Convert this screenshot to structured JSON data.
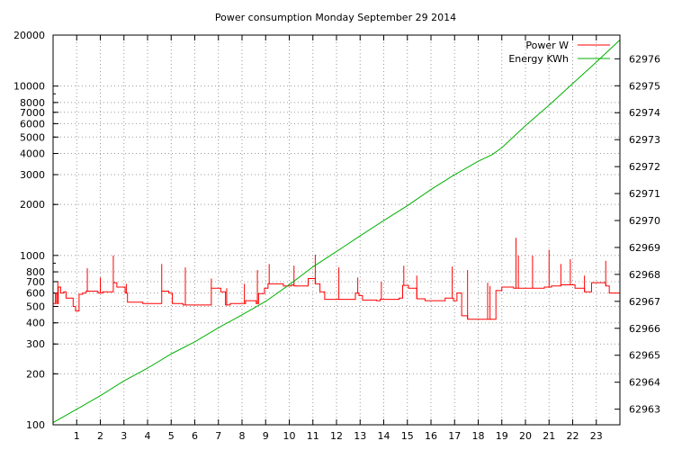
{
  "chart_data": {
    "type": "line",
    "title": "Power consumption Monday September 29 2014",
    "xlabel": "",
    "ylabel": "",
    "y2label": "",
    "xlim": [
      0,
      24
    ],
    "ylim": [
      100,
      20000
    ],
    "yscale": "log",
    "y2lim": [
      62962.42,
      62976.88
    ],
    "grid": true,
    "legend_position": "top-right",
    "x_ticks": [
      1,
      2,
      3,
      4,
      5,
      6,
      7,
      8,
      9,
      10,
      11,
      12,
      13,
      14,
      15,
      16,
      17,
      18,
      19,
      20,
      21,
      22,
      23
    ],
    "y_ticks": [
      {
        "value": 100,
        "label": "100"
      },
      {
        "value": 200,
        "label": "200"
      },
      {
        "value": 300,
        "label": "300"
      },
      {
        "value": 400,
        "label": "400"
      },
      {
        "value": 500,
        "label": "500"
      },
      {
        "value": 600,
        "label": "600"
      },
      {
        "value": 700,
        "label": "700"
      },
      {
        "value": 800,
        "label": "800"
      },
      {
        "value": 1000,
        "label": "1000"
      },
      {
        "value": 2000,
        "label": "2000"
      },
      {
        "value": 3000,
        "label": "3000"
      },
      {
        "value": 4000,
        "label": "4000"
      },
      {
        "value": 5000,
        "label": "5000"
      },
      {
        "value": 6000,
        "label": "6000"
      },
      {
        "value": 7000,
        "label": "7000"
      },
      {
        "value": 8000,
        "label": "8000"
      },
      {
        "value": 10000,
        "label": "10000"
      },
      {
        "value": 20000,
        "label": "20000"
      }
    ],
    "y2_ticks": [
      62963,
      62964,
      62965,
      62966,
      62967,
      62968,
      62969,
      62970,
      62971,
      62972,
      62973,
      62974,
      62975,
      62976
    ],
    "series": [
      {
        "name": "Power W",
        "axis": "y",
        "color": "#ff0000",
        "style": "step",
        "x": [
          0.0,
          0.1,
          0.15,
          0.22,
          0.32,
          0.45,
          0.55,
          0.85,
          0.95,
          1.1,
          1.25,
          1.4,
          1.9,
          2.1,
          2.55,
          2.7,
          3.05,
          3.15,
          3.8,
          3.95,
          4.45,
          4.6,
          4.9,
          5.05,
          5.5,
          5.6,
          6.05,
          6.15,
          6.5,
          6.7,
          7.1,
          7.3,
          7.5,
          7.65,
          8.05,
          8.15,
          8.6,
          8.7,
          8.95,
          9.1,
          9.75,
          10.1,
          10.2,
          10.6,
          10.8,
          11.1,
          11.3,
          11.5,
          12.1,
          12.3,
          12.8,
          12.95,
          13.1,
          13.7,
          13.85,
          14.65,
          14.8,
          15.05,
          15.4,
          15.75,
          15.9,
          16.5,
          16.6,
          16.95,
          17.1,
          17.3,
          17.55,
          18.15,
          18.3,
          18.6,
          18.75,
          19.0,
          19.5,
          20.0,
          20.5,
          20.8,
          21.1,
          21.5,
          22.1,
          22.5,
          22.8,
          23.4,
          23.55,
          24.0
        ],
        "y": [
          520,
          600,
          520,
          650,
          600,
          610,
          560,
          500,
          470,
          590,
          600,
          615,
          600,
          610,
          690,
          650,
          600,
          530,
          520,
          520,
          520,
          615,
          600,
          520,
          510,
          510,
          510,
          510,
          510,
          640,
          610,
          510,
          520,
          520,
          520,
          540,
          520,
          595,
          640,
          680,
          660,
          670,
          660,
          660,
          730,
          680,
          610,
          550,
          550,
          550,
          600,
          580,
          545,
          540,
          550,
          560,
          665,
          640,
          555,
          540,
          540,
          540,
          560,
          540,
          600,
          440,
          420,
          420,
          420,
          420,
          620,
          650,
          640,
          640,
          640,
          650,
          660,
          670,
          640,
          610,
          690,
          660,
          600,
          590
        ],
        "spikes": [
          {
            "x": 0.2,
            "y": 700
          },
          {
            "x": 1.45,
            "y": 840
          },
          {
            "x": 2.0,
            "y": 740
          },
          {
            "x": 2.55,
            "y": 1000
          },
          {
            "x": 3.1,
            "y": 680
          },
          {
            "x": 4.6,
            "y": 890
          },
          {
            "x": 5.6,
            "y": 850
          },
          {
            "x": 6.7,
            "y": 730
          },
          {
            "x": 7.35,
            "y": 640
          },
          {
            "x": 8.1,
            "y": 680
          },
          {
            "x": 8.65,
            "y": 820
          },
          {
            "x": 9.15,
            "y": 890
          },
          {
            "x": 10.2,
            "y": 870
          },
          {
            "x": 11.1,
            "y": 1010
          },
          {
            "x": 12.1,
            "y": 850
          },
          {
            "x": 12.9,
            "y": 740
          },
          {
            "x": 13.9,
            "y": 700
          },
          {
            "x": 14.85,
            "y": 870
          },
          {
            "x": 15.4,
            "y": 760
          },
          {
            "x": 16.9,
            "y": 860
          },
          {
            "x": 17.55,
            "y": 820
          },
          {
            "x": 18.4,
            "y": 690
          },
          {
            "x": 18.5,
            "y": 660
          },
          {
            "x": 19.6,
            "y": 1270
          },
          {
            "x": 19.7,
            "y": 1000
          },
          {
            "x": 20.3,
            "y": 1000
          },
          {
            "x": 21.0,
            "y": 1080
          },
          {
            "x": 21.5,
            "y": 890
          },
          {
            "x": 21.9,
            "y": 950
          },
          {
            "x": 22.5,
            "y": 760
          },
          {
            "x": 23.4,
            "y": 930
          }
        ]
      },
      {
        "name": "Energy KWh",
        "axis": "y2",
        "color": "#00b000",
        "style": "line",
        "x": [
          0,
          1,
          2,
          3,
          4,
          5,
          6,
          7,
          8,
          9,
          10,
          11,
          12,
          13,
          14,
          15,
          16,
          17,
          18,
          18.6,
          19,
          20,
          21,
          22,
          23,
          24
        ],
        "y": [
          62962.5,
          62963.0,
          62963.5,
          62964.05,
          62964.52,
          62965.05,
          62965.5,
          62966.02,
          62966.5,
          62967.0,
          62967.62,
          62968.28,
          62968.85,
          62969.43,
          62970.0,
          62970.55,
          62971.15,
          62971.7,
          62972.2,
          62972.45,
          62972.7,
          62973.52,
          62974.28,
          62975.08,
          62975.88,
          62976.7
        ]
      }
    ]
  }
}
